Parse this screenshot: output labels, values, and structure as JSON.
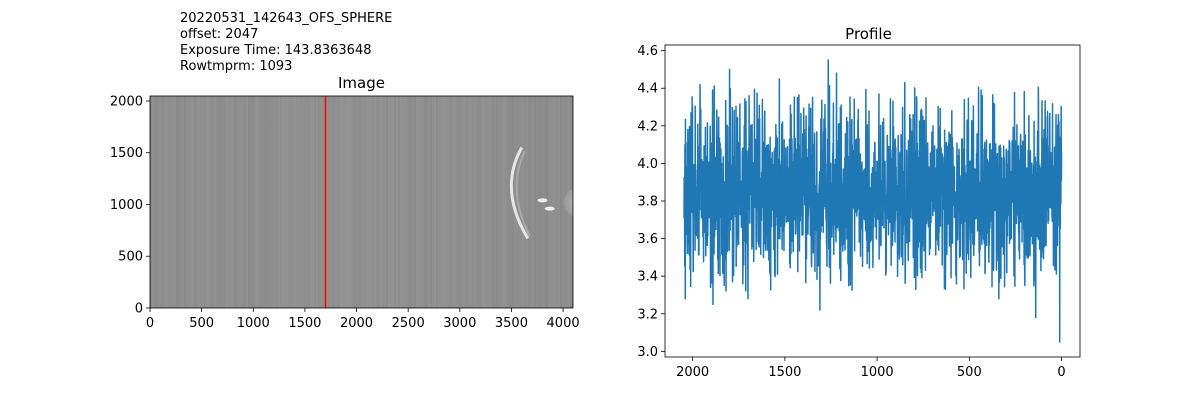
{
  "header": {
    "lines": [
      "20220531_142643_OFS_SPHERE",
      "offset: 2047",
      "Exposure Time: 143.8363648",
      "Rowtmprm: 1093"
    ]
  },
  "colors": {
    "line_series": "#1f77b4",
    "marker_line": "#ff0000",
    "image_gray": "#8f8f8f"
  },
  "chart_data": [
    {
      "type": "heatmap",
      "title": "Image",
      "xlabel": "",
      "ylabel": "",
      "xlim": [
        0,
        4096
      ],
      "ylim": [
        0,
        2048
      ],
      "xticks": [
        0,
        500,
        1000,
        1500,
        2000,
        2500,
        3000,
        3500,
        4000
      ],
      "yticks": [
        0,
        500,
        1000,
        1500,
        2000
      ],
      "colormap": "gray",
      "marker_column": 1700,
      "features": [
        {
          "kind": "bright arc",
          "x_range": [
            3450,
            3600
          ],
          "y_range": [
            750,
            1550
          ]
        },
        {
          "kind": "bright spot",
          "x": 3800,
          "y": 1040
        },
        {
          "kind": "bright spot",
          "x": 3870,
          "y": 960
        },
        {
          "kind": "bright disk edge",
          "x": 4096,
          "y": 1020
        }
      ]
    },
    {
      "type": "line",
      "title": "Profile",
      "xlabel": "",
      "ylabel": "",
      "x_inverted": true,
      "xlim": [
        2150,
        -100
      ],
      "ylim": [
        2.97,
        4.63
      ],
      "xticks": [
        2000,
        1500,
        1000,
        500,
        0
      ],
      "yticks": [
        3.0,
        3.2,
        3.4,
        3.6,
        3.8,
        4.0,
        4.2,
        4.4,
        4.6
      ],
      "series": [
        {
          "x_range": [
            0,
            2047
          ],
          "mean": 3.85,
          "typical_band": [
            3.6,
            4.1
          ],
          "max": 4.55,
          "max_at": 1265,
          "min": 3.05,
          "min_at": 10,
          "notable_values": [
            {
              "x": 2040,
              "y": 3.28
            },
            {
              "x": 1960,
              "y": 4.42
            },
            {
              "x": 1890,
              "y": 3.25
            },
            {
              "x": 1800,
              "y": 4.5
            },
            {
              "x": 1700,
              "y": 3.28
            },
            {
              "x": 1530,
              "y": 4.45
            },
            {
              "x": 1310,
              "y": 3.22
            },
            {
              "x": 1220,
              "y": 4.48
            },
            {
              "x": 850,
              "y": 4.43
            },
            {
              "x": 630,
              "y": 3.33
            },
            {
              "x": 430,
              "y": 4.36
            },
            {
              "x": 340,
              "y": 3.28
            },
            {
              "x": 140,
              "y": 3.18
            },
            {
              "x": 30,
              "y": 4.26
            },
            {
              "x": 10,
              "y": 3.05
            }
          ]
        }
      ]
    }
  ]
}
